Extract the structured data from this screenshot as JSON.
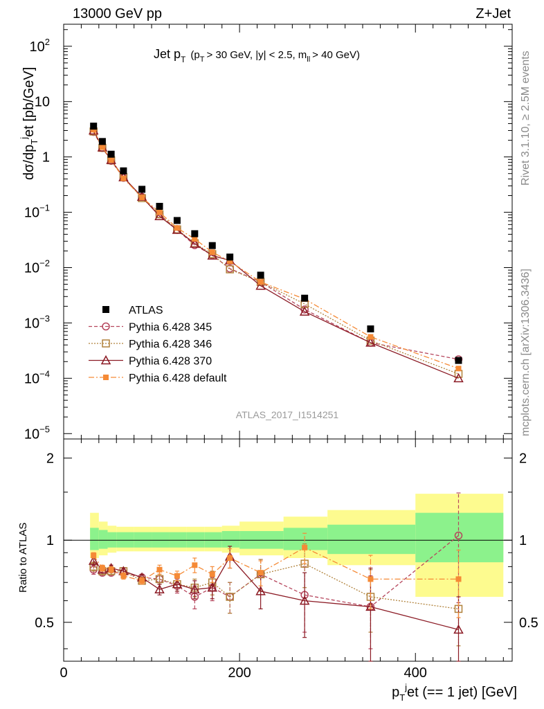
{
  "header": {
    "left": "13000 GeV pp",
    "right": "Z+Jet"
  },
  "side_labels": {
    "rivet": "Rivet 3.1.10, ≥ 2.5M events",
    "mcplots": "mcplots.cern.ch [arXiv:1306.3436]"
  },
  "analysis_id": "ATLAS_2017_I1514251",
  "plot_title": {
    "main": "Jet p",
    "main_sub": "T",
    "cuts_1": "(p",
    "cuts_1_sub": "T",
    "cuts_2": "> 30 GeV, |y| < 2.5, m",
    "cuts_2_sub": "ll",
    "cuts_3": "> 40 GeV)"
  },
  "axes": {
    "ylabel_top": {
      "p1": "dσ/dp",
      "sub": "T",
      "sup": "j",
      "p2": "et [pb/GeV]"
    },
    "ylabel_bottom": "Ratio to ATLAS",
    "xlabel": {
      "p1": "p",
      "sub": "T",
      "sup": "j",
      "p2": "et (== 1 jet) [GeV]"
    },
    "top_ticks": [
      {
        "base": "10",
        "exp": "2",
        "value": 100
      },
      {
        "base": "10",
        "exp": "",
        "value": 10
      },
      {
        "base": "1",
        "exp": "",
        "value": 1
      },
      {
        "base": "10",
        "exp": "−1",
        "value": 0.1
      },
      {
        "base": "10",
        "exp": "−2",
        "value": 0.01
      },
      {
        "base": "10",
        "exp": "−3",
        "value": 0.001
      },
      {
        "base": "10",
        "exp": "−4",
        "value": 0.0001
      },
      {
        "base": "10",
        "exp": "−5",
        "value": 1e-05
      }
    ],
    "ratio_ticks": [
      {
        "label": "2",
        "value": 2
      },
      {
        "label": "1",
        "value": 1
      },
      {
        "label": "0.5",
        "value": 0.5
      }
    ],
    "x_ticks": [
      {
        "label": "0",
        "value": 0
      },
      {
        "label": "200",
        "value": 200
      },
      {
        "label": "400",
        "value": 400
      }
    ]
  },
  "legend": [
    {
      "label": "ATLAS",
      "key": "atlas"
    },
    {
      "label": "Pythia 6.428 345",
      "key": "p345"
    },
    {
      "label": "Pythia 6.428 346",
      "key": "p346"
    },
    {
      "label": "Pythia 6.428 370",
      "key": "p370"
    },
    {
      "label": "Pythia 6.428 default",
      "key": "pdef"
    }
  ],
  "chart_data": {
    "type": "scatter",
    "x_range": [
      0,
      510
    ],
    "y_range_top": [
      8e-06,
      250
    ],
    "y_scale_top": "log",
    "ratio_range": [
      0.36,
      2.35
    ],
    "ratio_scale": "log",
    "bins": [
      {
        "lo": 30,
        "hi": 40
      },
      {
        "lo": 40,
        "hi": 50
      },
      {
        "lo": 50,
        "hi": 60
      },
      {
        "lo": 60,
        "hi": 80
      },
      {
        "lo": 80,
        "hi": 100
      },
      {
        "lo": 100,
        "hi": 120
      },
      {
        "lo": 120,
        "hi": 140
      },
      {
        "lo": 140,
        "hi": 160
      },
      {
        "lo": 160,
        "hi": 180
      },
      {
        "lo": 180,
        "hi": 200
      },
      {
        "lo": 200,
        "hi": 250
      },
      {
        "lo": 250,
        "hi": 300
      },
      {
        "lo": 300,
        "hi": 400
      },
      {
        "lo": 400,
        "hi": 500
      }
    ],
    "atlas": {
      "x": [
        34,
        44,
        54,
        68,
        89,
        109,
        129,
        149,
        169,
        189,
        224,
        274,
        349,
        449
      ],
      "y": [
        3.6,
        1.9,
        1.12,
        0.56,
        0.26,
        0.128,
        0.071,
        0.041,
        0.025,
        0.0155,
        0.0073,
        0.0028,
        0.00078,
        0.00021
      ]
    },
    "ratio_band_inner": [
      [
        0.92,
        1.11
      ],
      [
        0.93,
        1.09
      ],
      [
        0.94,
        1.07
      ],
      [
        0.94,
        1.07
      ],
      [
        0.94,
        1.07
      ],
      [
        0.94,
        1.07
      ],
      [
        0.94,
        1.07
      ],
      [
        0.94,
        1.07
      ],
      [
        0.94,
        1.07
      ],
      [
        0.94,
        1.08
      ],
      [
        0.93,
        1.08
      ],
      [
        0.92,
        1.11
      ],
      [
        0.89,
        1.14
      ],
      [
        0.83,
        1.26
      ]
    ],
    "ratio_band_outer": [
      [
        0.86,
        1.26
      ],
      [
        0.88,
        1.17
      ],
      [
        0.9,
        1.13
      ],
      [
        0.91,
        1.12
      ],
      [
        0.91,
        1.12
      ],
      [
        0.91,
        1.12
      ],
      [
        0.91,
        1.12
      ],
      [
        0.91,
        1.12
      ],
      [
        0.91,
        1.12
      ],
      [
        0.9,
        1.13
      ],
      [
        0.88,
        1.17
      ],
      [
        0.86,
        1.22
      ],
      [
        0.81,
        1.29
      ],
      [
        0.62,
        1.48
      ]
    ],
    "series": [
      {
        "name": "Pythia 6.428 345",
        "key": "p345",
        "color": "#b5455c",
        "marker": "circle",
        "dash": "5,3",
        "x": [
          34,
          44,
          54,
          68,
          89,
          109,
          129,
          149,
          169,
          189,
          224,
          274,
          349,
          449
        ],
        "y": [
          2.83,
          1.45,
          0.85,
          0.42,
          0.19,
          0.092,
          0.048,
          0.0255,
          0.0168,
          0.0096,
          0.0055,
          0.00175,
          0.00044,
          0.00022
        ],
        "ratio": [
          0.78,
          0.76,
          0.76,
          0.76,
          0.73,
          0.72,
          0.68,
          0.62,
          0.67,
          0.62,
          0.75,
          0.63,
          0.57,
          1.04
        ],
        "ratio_err": [
          0.03,
          0.02,
          0.02,
          0.02,
          0.02,
          0.03,
          0.04,
          0.06,
          0.07,
          0.08,
          0.1,
          0.17,
          0.17,
          0.45
        ]
      },
      {
        "name": "Pythia 6.428 346",
        "key": "p346",
        "color": "#b0813a",
        "marker": "square",
        "dash": "2,2",
        "x": [
          34,
          44,
          54,
          68,
          89,
          109,
          129,
          149,
          169,
          189,
          224,
          274,
          349,
          449
        ],
        "y": [
          2.88,
          1.46,
          0.87,
          0.43,
          0.18,
          0.092,
          0.049,
          0.0275,
          0.0175,
          0.0093,
          0.0055,
          0.0022,
          0.00048,
          0.00012
        ],
        "ratio": [
          0.8,
          0.77,
          0.77,
          0.77,
          0.71,
          0.72,
          0.69,
          0.67,
          0.7,
          0.62,
          0.75,
          0.82,
          0.62,
          0.56
        ],
        "ratio_err": [
          0.03,
          0.02,
          0.02,
          0.02,
          0.02,
          0.03,
          0.04,
          0.05,
          0.07,
          0.08,
          0.1,
          0.15,
          0.16,
          0.15
        ]
      },
      {
        "name": "Pythia 6.428 370",
        "key": "p370",
        "color": "#8b1a24",
        "marker": "triangle",
        "dash": "",
        "x": [
          34,
          44,
          54,
          68,
          89,
          109,
          129,
          149,
          169,
          189,
          224,
          274,
          349,
          449
        ],
        "y": [
          3.0,
          1.48,
          0.88,
          0.43,
          0.19,
          0.085,
          0.048,
          0.027,
          0.0165,
          0.0135,
          0.0047,
          0.0016,
          0.00044,
          0.0001
        ],
        "ratio": [
          0.84,
          0.78,
          0.79,
          0.77,
          0.73,
          0.66,
          0.69,
          0.66,
          0.67,
          0.87,
          0.65,
          0.6,
          0.57,
          0.47
        ],
        "ratio_err": [
          0.03,
          0.02,
          0.02,
          0.02,
          0.02,
          0.03,
          0.04,
          0.05,
          0.06,
          0.08,
          0.09,
          0.16,
          0.22,
          0.15
        ]
      },
      {
        "name": "Pythia 6.428 default",
        "key": "pdef",
        "color": "#f58a36",
        "marker": "fsquare",
        "dash": "8,3,2,3",
        "x": [
          34,
          44,
          54,
          68,
          89,
          109,
          129,
          149,
          169,
          189,
          224,
          274,
          349,
          449
        ],
        "y": [
          3.1,
          1.5,
          0.88,
          0.41,
          0.185,
          0.1,
          0.052,
          0.033,
          0.019,
          0.013,
          0.0055,
          0.0027,
          0.00056,
          0.00015
        ],
        "ratio": [
          0.88,
          0.79,
          0.78,
          0.74,
          0.71,
          0.78,
          0.74,
          0.81,
          0.75,
          0.86,
          0.76,
          0.94,
          0.72,
          0.72
        ],
        "ratio_err": [
          0.02,
          0.02,
          0.02,
          0.02,
          0.02,
          0.03,
          0.03,
          0.05,
          0.05,
          0.07,
          0.08,
          0.12,
          0.16,
          0.2
        ]
      }
    ]
  }
}
